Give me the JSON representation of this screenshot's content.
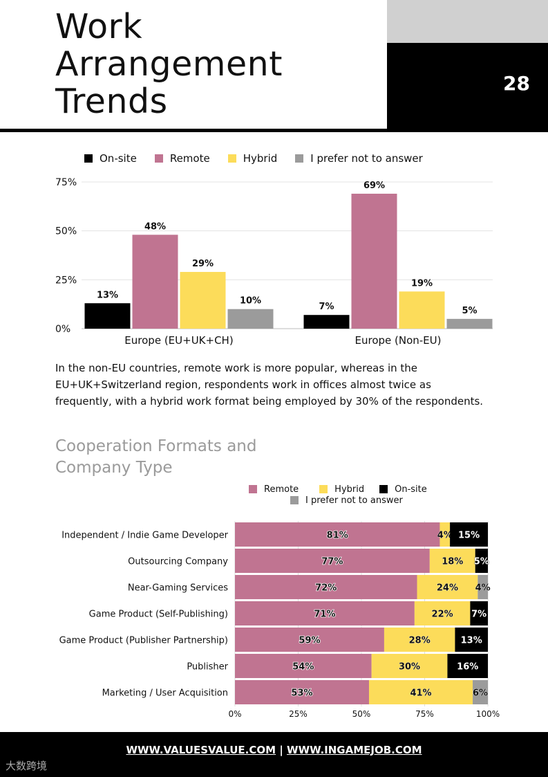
{
  "header": {
    "title_lines": [
      "Work",
      "Arrangement",
      "Trends"
    ],
    "page_number": "28"
  },
  "colors": {
    "onsite": "#000000",
    "remote": "#c07491",
    "hybrid": "#fcdc5a",
    "no_answer": "#9b9b9b"
  },
  "chart_data": [
    {
      "type": "bar",
      "legend": [
        "On-site",
        "Remote",
        "Hybrid",
        "I prefer not to answer"
      ],
      "legend_placement": "top",
      "categories": [
        "Europe (EU+UK+CH)",
        "Europe (Non-EU)"
      ],
      "series": [
        {
          "name": "On-site",
          "values": [
            13,
            7
          ]
        },
        {
          "name": "Remote",
          "values": [
            48,
            69
          ]
        },
        {
          "name": "Hybrid",
          "values": [
            29,
            19
          ]
        },
        {
          "name": "I prefer not to answer",
          "values": [
            10,
            5
          ]
        }
      ],
      "ylim": [
        0,
        75
      ],
      "yticks": [
        "0%",
        "25%",
        "50%",
        "75%"
      ],
      "grid": true
    },
    {
      "type": "bar",
      "orientation": "horizontal",
      "stacked": true,
      "legend": [
        "Remote",
        "Hybrid",
        "On-site",
        "I prefer not to answer"
      ],
      "legend_placement": "top",
      "categories": [
        "Independent / Indie Game Developer",
        "Outsourcing Company",
        "Near-Gaming Services",
        "Game Product (Self-Publishing)",
        "Game Product (Publisher Partnership)",
        "Publisher",
        "Marketing / User Acquisition"
      ],
      "series": [
        {
          "name": "Remote",
          "values": [
            81,
            77,
            72,
            71,
            59,
            54,
            53
          ]
        },
        {
          "name": "Hybrid",
          "values": [
            4,
            18,
            24,
            22,
            28,
            30,
            41
          ]
        },
        {
          "name": "On-site",
          "values": [
            15,
            5,
            0,
            7,
            13,
            16,
            0
          ]
        },
        {
          "name": "I prefer not to answer",
          "values": [
            0,
            0,
            4,
            0,
            0,
            0,
            6
          ]
        }
      ],
      "xlim": [
        0,
        100
      ],
      "xticks": [
        "0%",
        "25%",
        "50%",
        "75%",
        "100%"
      ]
    }
  ],
  "body": {
    "paragraph": "In the non-EU countries, remote work is more popular, whereas in the EU+UK+Switzerland region, respondents work in offices almost twice as frequently, with a hybrid work format being employed by 30% of the respondents.",
    "subtitle_lines": [
      "Cooperation Formats and",
      "Company Type"
    ]
  },
  "footer": {
    "link1": "WWW.VALUESVALUE.COM",
    "separator": "|",
    "link2": "WWW.INGAMEJOB.COM",
    "watermark": "大数跨境"
  }
}
